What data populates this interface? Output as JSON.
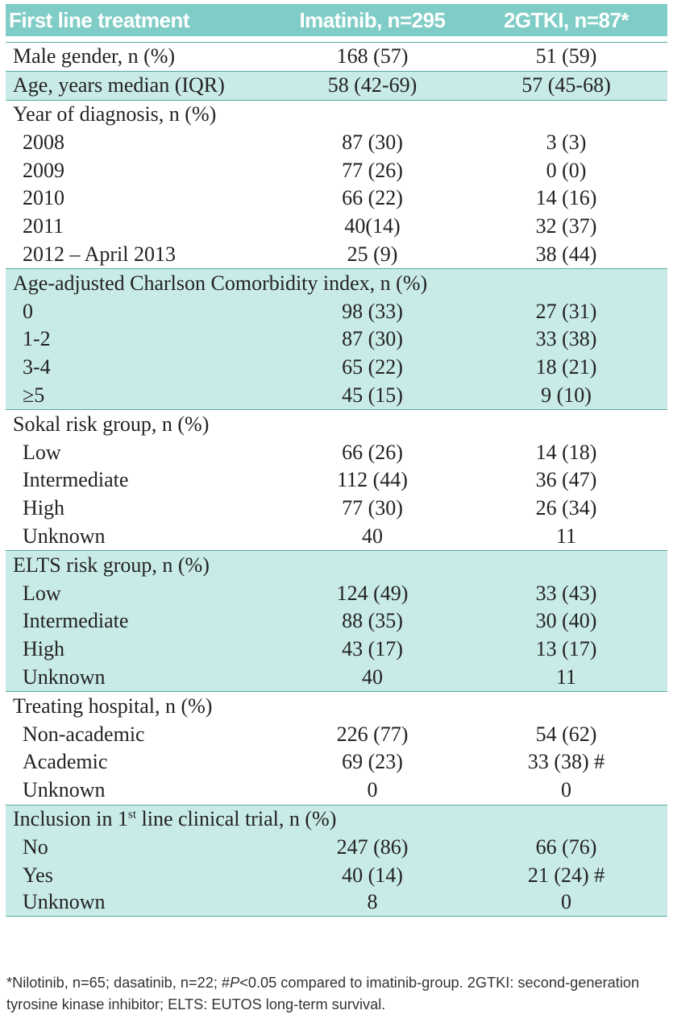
{
  "header": {
    "col1": "First line treatment",
    "col2": "Imatinib, n=295",
    "col3": "2GTKI, n=87*"
  },
  "male": {
    "label": "Male gender, n (%)",
    "imatinib": "168 (57)",
    "tki2": "51 (59)"
  },
  "age": {
    "label": "Age, years median (IQR)",
    "imatinib": "58 (42-69)",
    "tki2": "57 (45-68)"
  },
  "year": {
    "label": "Year of diagnosis, n (%)",
    "rows": [
      {
        "label": "2008",
        "imatinib": "87 (30)",
        "tki2": "3 (3)"
      },
      {
        "label": "2009",
        "imatinib": "77 (26)",
        "tki2": "0 (0)"
      },
      {
        "label": "2010",
        "imatinib": "66 (22)",
        "tki2": "14 (16)"
      },
      {
        "label": "2011",
        "imatinib": "40(14)",
        "tki2": "32 (37)"
      },
      {
        "label": "2012 – April 2013",
        "imatinib": "25 (9)",
        "tki2": "38 (44)"
      }
    ]
  },
  "charlson": {
    "label": "Age-adjusted Charlson Comorbidity index, n (%)",
    "rows": [
      {
        "label": "0",
        "imatinib": "98 (33)",
        "tki2": "27 (31)"
      },
      {
        "label": "1-2",
        "imatinib": "87 (30)",
        "tki2": "33 (38)"
      },
      {
        "label": "3-4",
        "imatinib": "65 (22)",
        "tki2": "18 (21)"
      },
      {
        "label": "≥5",
        "imatinib": "45 (15)",
        "tki2": "9 (10)"
      }
    ]
  },
  "sokal": {
    "label": "Sokal risk group, n (%)",
    "rows": [
      {
        "label": "Low",
        "imatinib": "66 (26)",
        "tki2": "14 (18)"
      },
      {
        "label": "Intermediate",
        "imatinib": "112 (44)",
        "tki2": "36 (47)"
      },
      {
        "label": "High",
        "imatinib": "77 (30)",
        "tki2": "26 (34)"
      },
      {
        "label": "Unknown",
        "imatinib": "40",
        "tki2": "11"
      }
    ]
  },
  "elts": {
    "label": "ELTS risk group, n (%)",
    "rows": [
      {
        "label": "Low",
        "imatinib": "124 (49)",
        "tki2": "33 (43)"
      },
      {
        "label": "Intermediate",
        "imatinib": "88 (35)",
        "tki2": "30 (40)"
      },
      {
        "label": "High",
        "imatinib": "43 (17)",
        "tki2": "13 (17)"
      },
      {
        "label": "Unknown",
        "imatinib": "40",
        "tki2": "11"
      }
    ]
  },
  "hospital": {
    "label": "Treating hospital, n (%)",
    "rows": [
      {
        "label": "Non-academic",
        "imatinib": "226 (77)",
        "tki2": "54 (62)"
      },
      {
        "label": "Academic",
        "imatinib": "69 (23)",
        "tki2": "33 (38) #"
      },
      {
        "label": "Unknown",
        "imatinib": "0",
        "tki2": "0"
      }
    ]
  },
  "trial": {
    "label_pre": "Inclusion in 1",
    "label_sup": "st",
    "label_post": " line clinical trial, n (%)",
    "rows": [
      {
        "label": "No",
        "imatinib": "247 (86)",
        "tki2": "66 (76)"
      },
      {
        "label": "Yes",
        "imatinib": "40 (14)",
        "tki2": "21 (24) #"
      },
      {
        "label": "Unknown",
        "imatinib": "8",
        "tki2": "0"
      }
    ]
  },
  "footnote": {
    "part1": "*Nilotinib, n=65; dasatinib, n=22; #",
    "italic": "P",
    "part2": "<0.05 compared to imatinib-group. 2GTKI: second-generation tyrosine kinase inhibitor; ELTS: EUTOS long-term survival."
  }
}
